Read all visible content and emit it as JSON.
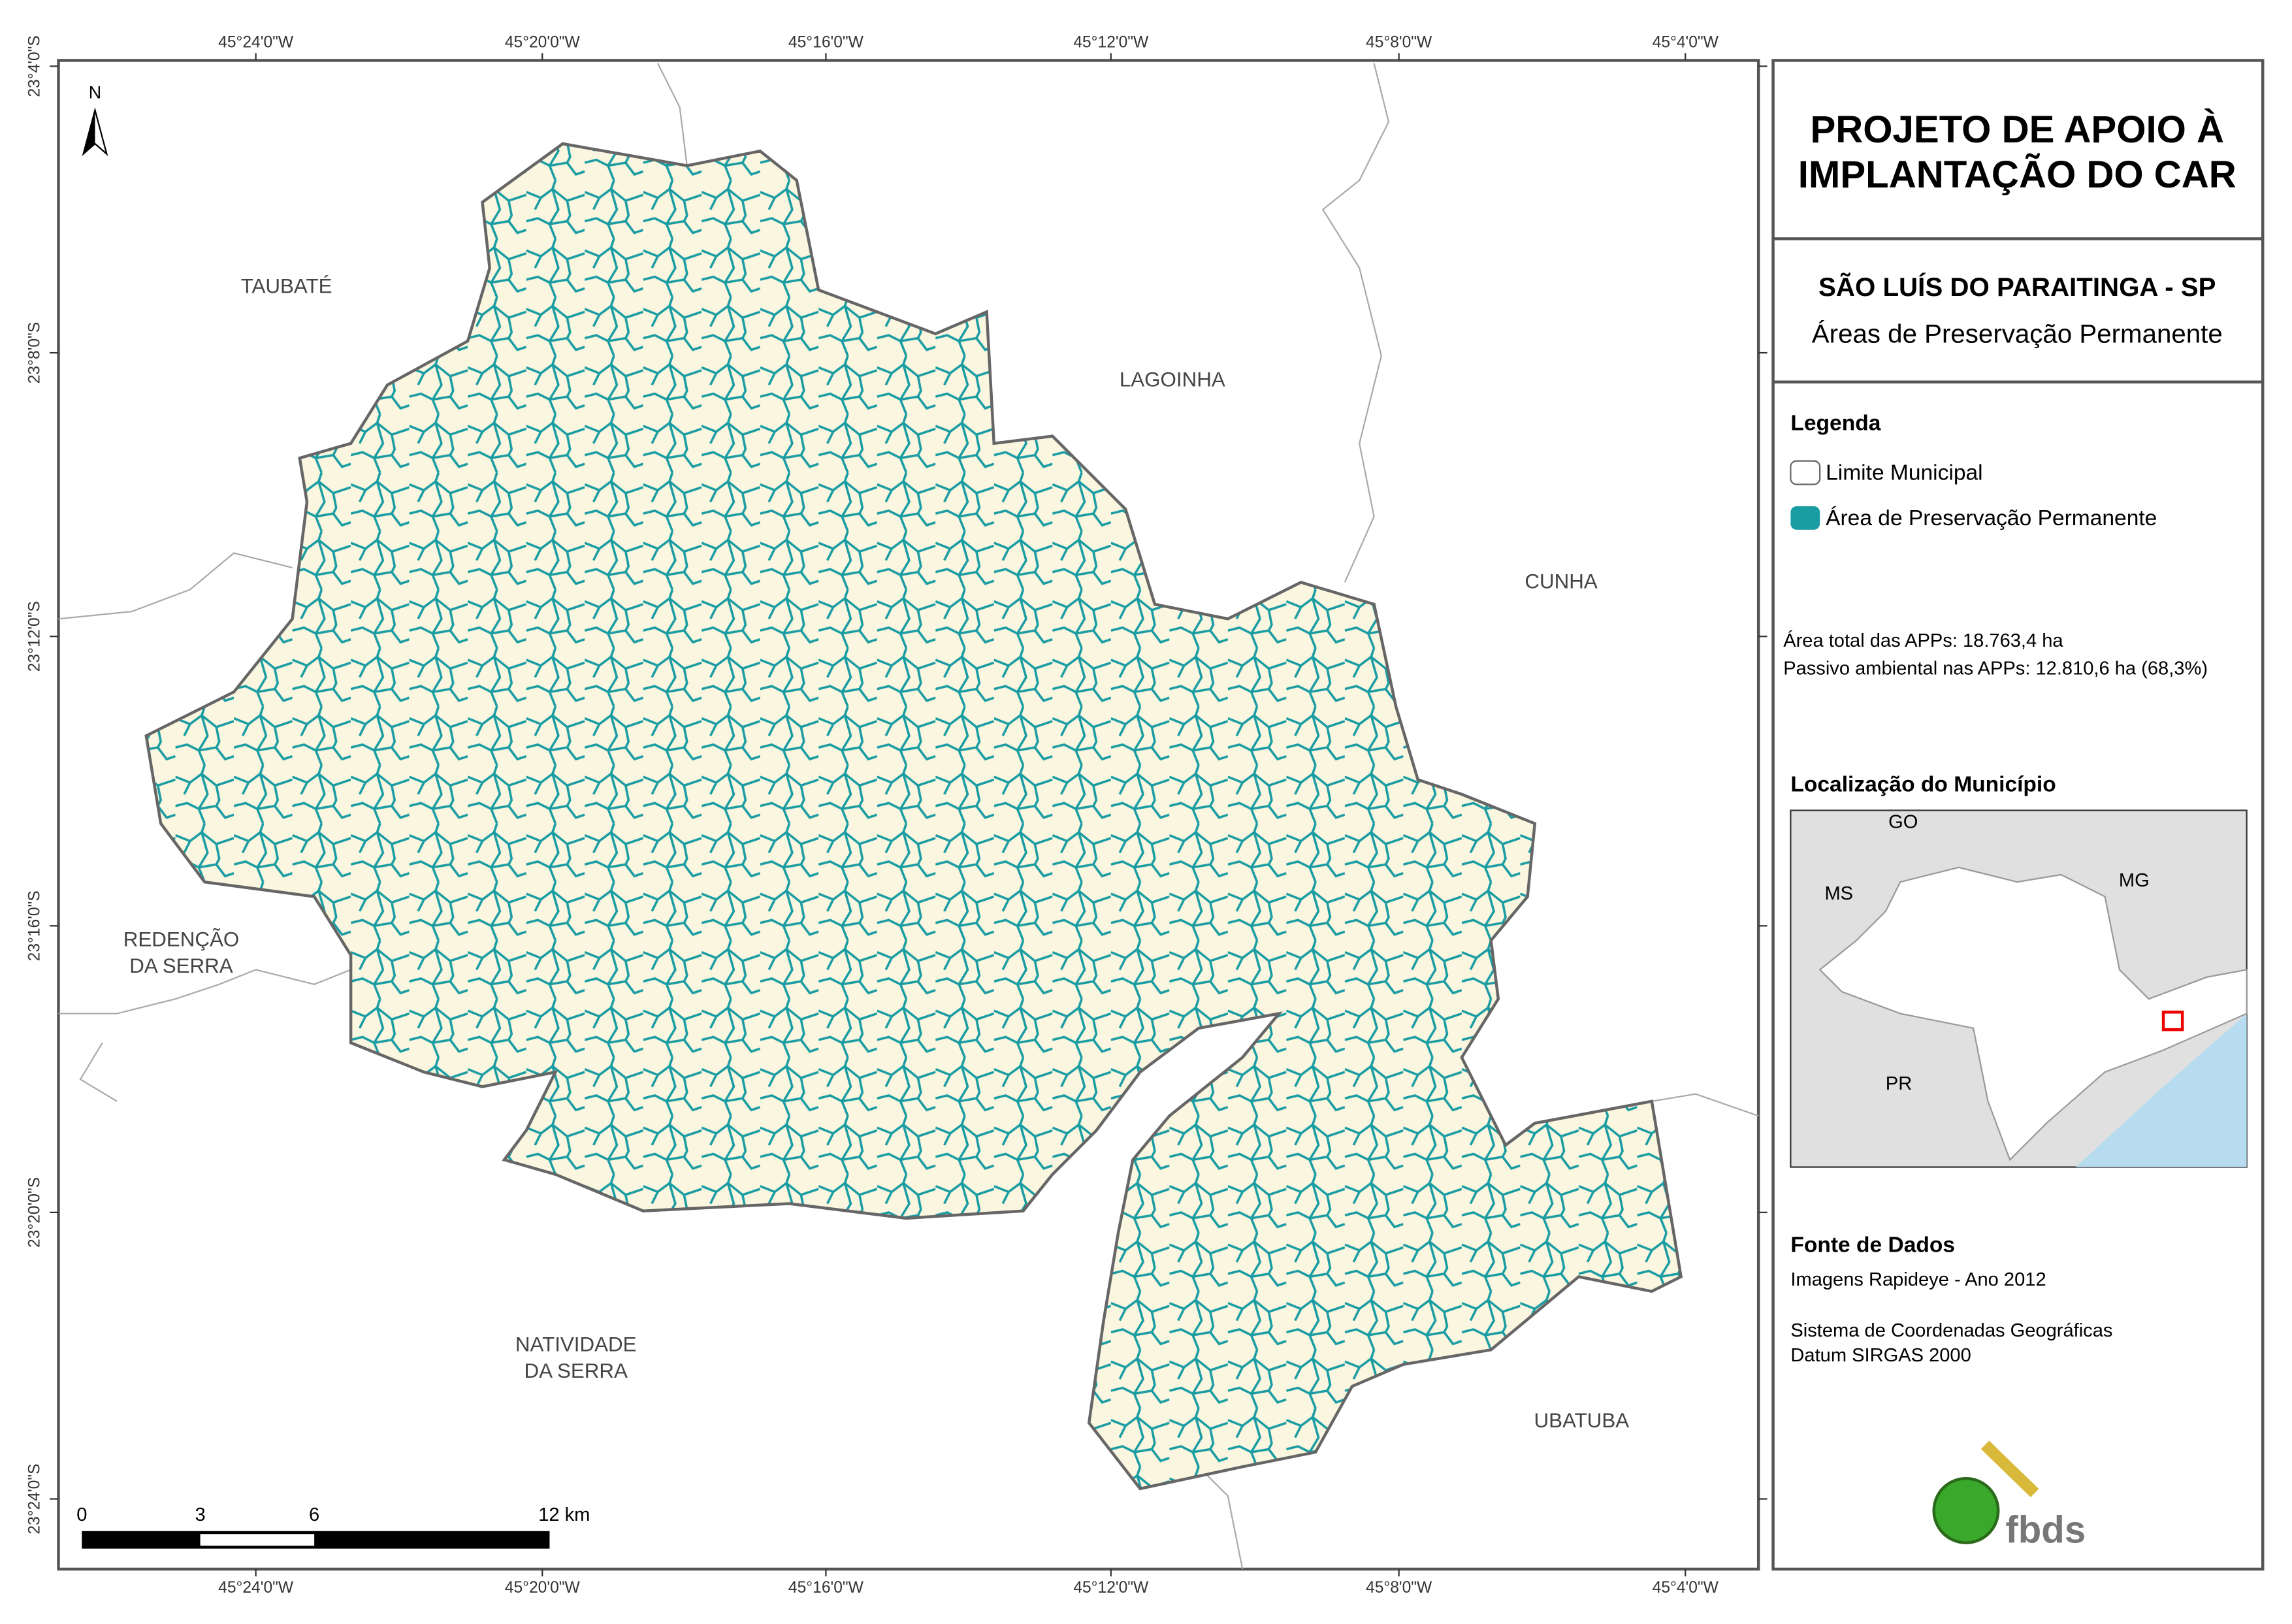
{
  "map": {
    "x_labels": [
      "45°24'0\"W",
      "45°20'0\"W",
      "45°16'0\"W",
      "45°12'0\"W",
      "45°8'0\"W",
      "45°4'0\"W"
    ],
    "y_labels": [
      "23°4'0\"S",
      "23°8'0\"S",
      "23°12'0\"S",
      "23°16'0\"S",
      "23°20'0\"S",
      "23°24'0\"S"
    ],
    "north": "N",
    "neighbors": [
      {
        "lines": [
          "TAUBATÉ"
        ]
      },
      {
        "lines": [
          "LAGOINHA"
        ]
      },
      {
        "lines": [
          "CUNHA"
        ]
      },
      {
        "lines": [
          "REDENÇÃO",
          "DA SERRA"
        ]
      },
      {
        "lines": [
          "NATIVIDADE",
          "DA SERRA"
        ]
      },
      {
        "lines": [
          "UBATUBA"
        ]
      }
    ],
    "scale_bar": [
      "0",
      "3",
      "6",
      "12 km"
    ]
  },
  "panel": {
    "title_lines": [
      "PROJETO DE APOIO À",
      "IMPLANTAÇÃO DO CAR"
    ],
    "municipality": "SÃO LUÍS DO PARAITINGA - SP",
    "subtitle": "Áreas de Preservação Permanente",
    "legend_title": "Legenda",
    "legend_items": [
      "Limite Municipal",
      "Área de Preservação Permanente"
    ],
    "stats": [
      "Área total das APPs: 18.763,4 ha",
      "Passivo ambiental nas APPs: 12.810,6 ha (68,3%)"
    ],
    "location_title": "Localização do Município",
    "location_labels": [
      "GO",
      "MS",
      "MG",
      "PR"
    ],
    "source_title": "Fonte de Dados",
    "source_lines": [
      "Imagens Rapideye - Ano 2012",
      "Sistema de Coordenadas Geográficas",
      "Datum SIRGAS 2000"
    ],
    "logo": "fbds"
  }
}
